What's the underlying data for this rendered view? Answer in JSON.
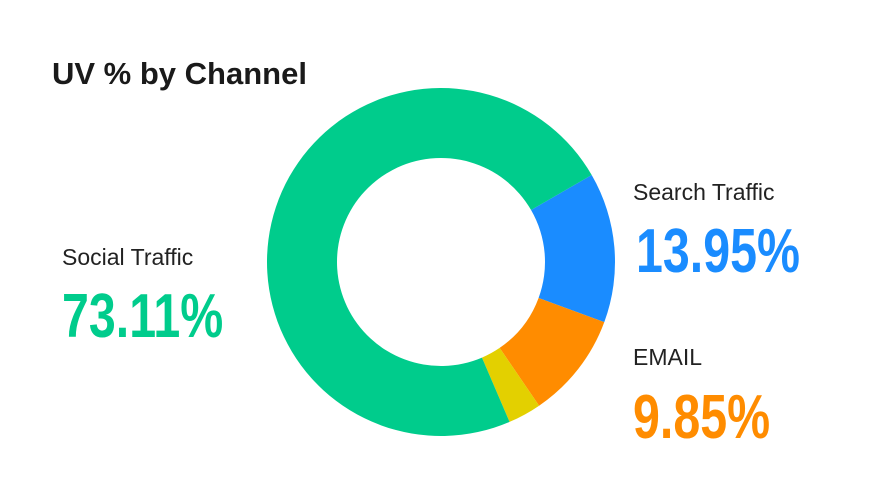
{
  "chart_data": {
    "type": "donut",
    "title": "UV % by Channel",
    "categories": [
      "Search Traffic",
      "EMAIL",
      null,
      "Social Traffic"
    ],
    "values": [
      13.95,
      9.85,
      3.09,
      73.11
    ],
    "value_labels": [
      "13.95%",
      "9.85%",
      null,
      "73.11%"
    ],
    "colors": [
      "#1a8cff",
      "#ff8c00",
      "#e3d000",
      "#00cc8c"
    ]
  }
}
